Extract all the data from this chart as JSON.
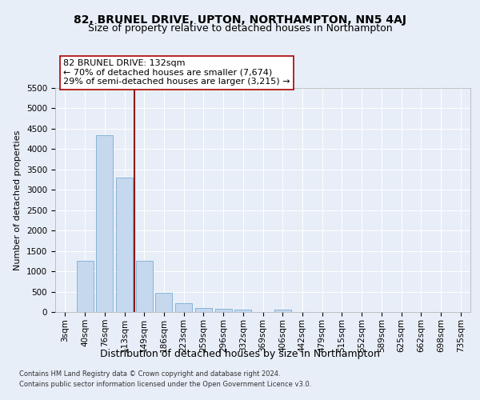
{
  "title": "82, BRUNEL DRIVE, UPTON, NORTHAMPTON, NN5 4AJ",
  "subtitle": "Size of property relative to detached houses in Northampton",
  "xlabel": "Distribution of detached houses by size in Northampton",
  "ylabel": "Number of detached properties",
  "footer_line1": "Contains HM Land Registry data © Crown copyright and database right 2024.",
  "footer_line2": "Contains public sector information licensed under the Open Government Licence v3.0.",
  "categories": [
    "3sqm",
    "40sqm",
    "76sqm",
    "113sqm",
    "149sqm",
    "186sqm",
    "223sqm",
    "259sqm",
    "296sqm",
    "332sqm",
    "369sqm",
    "406sqm",
    "442sqm",
    "479sqm",
    "515sqm",
    "552sqm",
    "589sqm",
    "625sqm",
    "662sqm",
    "698sqm",
    "735sqm"
  ],
  "values": [
    0,
    1250,
    4350,
    3300,
    1250,
    480,
    220,
    100,
    70,
    60,
    0,
    65,
    0,
    0,
    0,
    0,
    0,
    0,
    0,
    0,
    0
  ],
  "bar_color": "#c5d8ee",
  "bar_edge_color": "#7aadd4",
  "vline_x_index": 3.5,
  "vline_color": "#8b1a1a",
  "annotation_line1": "82 BRUNEL DRIVE: 132sqm",
  "annotation_line2": "← 70% of detached houses are smaller (7,674)",
  "annotation_line3": "29% of semi-detached houses are larger (3,215) →",
  "annotation_box_facecolor": "#ffffff",
  "annotation_box_edgecolor": "#aa0000",
  "ylim": [
    0,
    5500
  ],
  "yticks": [
    0,
    500,
    1000,
    1500,
    2000,
    2500,
    3000,
    3500,
    4000,
    4500,
    5000,
    5500
  ],
  "background_color": "#e8eef8",
  "grid_color": "#ffffff",
  "title_fontsize": 10,
  "subtitle_fontsize": 9,
  "ylabel_fontsize": 8,
  "xlabel_fontsize": 9,
  "tick_fontsize": 7.5,
  "footer_fontsize": 6,
  "annotation_fontsize": 8
}
